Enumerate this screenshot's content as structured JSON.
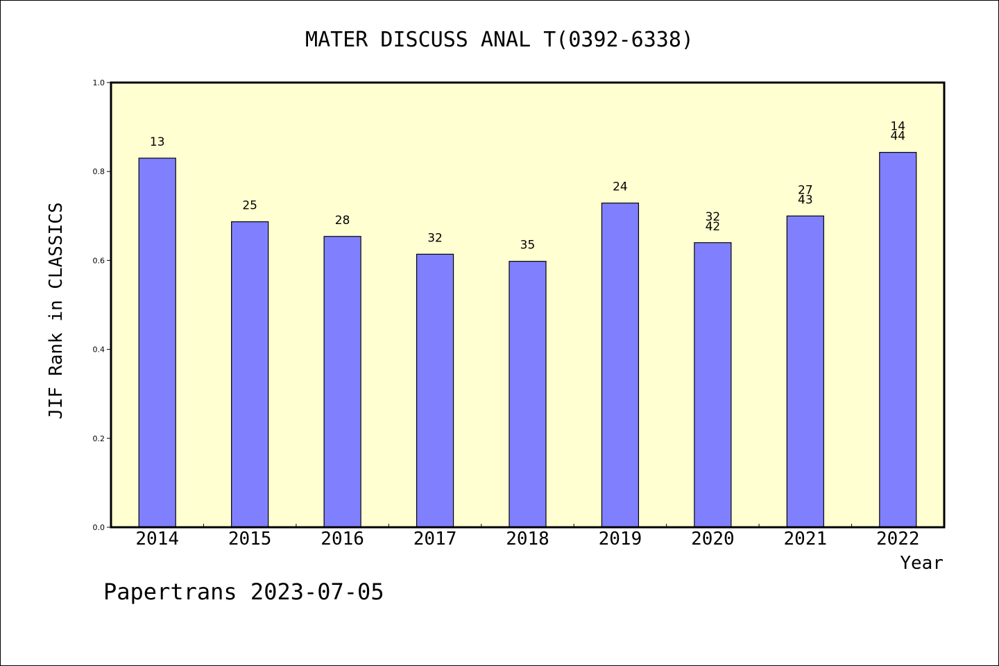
{
  "chart_data": {
    "type": "bar",
    "title": "MATER DISCUSS ANAL T(0392-6338)",
    "xlabel": "Year",
    "ylabel": "JIF Rank in CLASSICS",
    "ylim": [
      0,
      1.0
    ],
    "yticks": [
      "0.0",
      "0.2",
      "0.4",
      "0.6",
      "0.8",
      "1.0"
    ],
    "grid": false,
    "categories": [
      "2014",
      "2015",
      "2016",
      "2017",
      "2018",
      "2019",
      "2020",
      "2021",
      "2022"
    ],
    "values": [
      0.83,
      0.687,
      0.654,
      0.614,
      0.598,
      0.729,
      0.64,
      0.7,
      0.843
    ],
    "bar_labels": [
      [
        "13"
      ],
      [
        "25"
      ],
      [
        "28"
      ],
      [
        "32"
      ],
      [
        "35"
      ],
      [
        "24"
      ],
      [
        "32",
        "42"
      ],
      [
        "27",
        "43"
      ],
      [
        "14",
        "44"
      ]
    ],
    "colors": {
      "plot_background": "#ffffd2",
      "bar_fill": "#8080ff",
      "bar_stroke": "#000000",
      "axis": "#000000"
    }
  },
  "footer": {
    "credit": "Papertrans 2023-07-05"
  }
}
